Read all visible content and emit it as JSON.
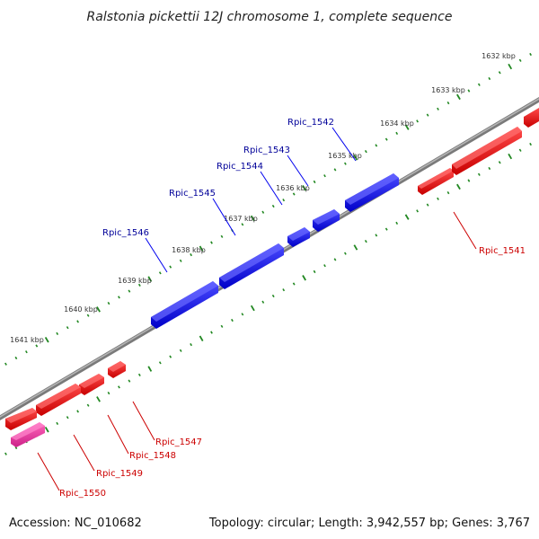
{
  "title": "Ralstonia pickettii 12J chromosome 1, complete sequence",
  "footer": {
    "accession": "Accession: NC_010682",
    "summary": "Topology: circular; Length: 3,942,557 bp; Genes: 3,767"
  },
  "colors": {
    "forward_gene": "#0000ee",
    "reverse_gene": "#ee0000",
    "highlight_gene": "#ee3399",
    "backbone": "#888888",
    "ticks": "#228822",
    "forward_label": "#000099",
    "reverse_label": "#cc0000"
  },
  "scale": {
    "ticks": [
      "1632 kbp",
      "1633 kbp",
      "1634 kbp",
      "1635 kbp",
      "1636 kbp",
      "1637 kbp",
      "1638 kbp",
      "1639 kbp",
      "1640 kbp",
      "1641 kbp"
    ]
  },
  "genes": {
    "forward": [
      "Rpic_1542",
      "Rpic_1543",
      "Rpic_1544",
      "Rpic_1545",
      "Rpic_1546"
    ],
    "reverse": [
      "Rpic_1541",
      "Rpic_1547",
      "Rpic_1548",
      "Rpic_1549",
      "Rpic_1550"
    ]
  }
}
